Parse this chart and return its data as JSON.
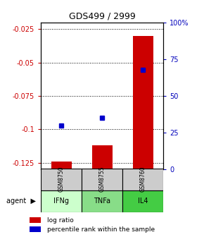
{
  "title": "GDS499 / 2999",
  "samples": [
    "GSM8750",
    "GSM8755",
    "GSM8760"
  ],
  "agents": [
    "IFNg",
    "TNFa",
    "IL4"
  ],
  "log_ratios": [
    -0.124,
    -0.112,
    -0.03
  ],
  "percentile_ranks": [
    30,
    35,
    68
  ],
  "ylim_left": [
    -0.13,
    -0.02
  ],
  "ylim_right": [
    0,
    100
  ],
  "yticks_left": [
    -0.125,
    -0.1,
    -0.075,
    -0.05,
    -0.025
  ],
  "yticks_right": [
    0,
    25,
    50,
    75,
    100
  ],
  "ytick_labels_left": [
    "-0.125",
    "-0.1",
    "-0.075",
    "-0.05",
    "-0.025"
  ],
  "ytick_labels_right": [
    "0",
    "25",
    "50",
    "75",
    "100%"
  ],
  "bar_color": "#cc0000",
  "dot_color": "#0000cc",
  "gsm_bg_color": "#cccccc",
  "agent_bg_colors": [
    "#ccffcc",
    "#88dd88",
    "#44cc44"
  ],
  "title_color": "#000000",
  "left_axis_color": "#cc0000",
  "right_axis_color": "#0000bb",
  "bar_bottom": -0.13,
  "bar_width": 0.5
}
